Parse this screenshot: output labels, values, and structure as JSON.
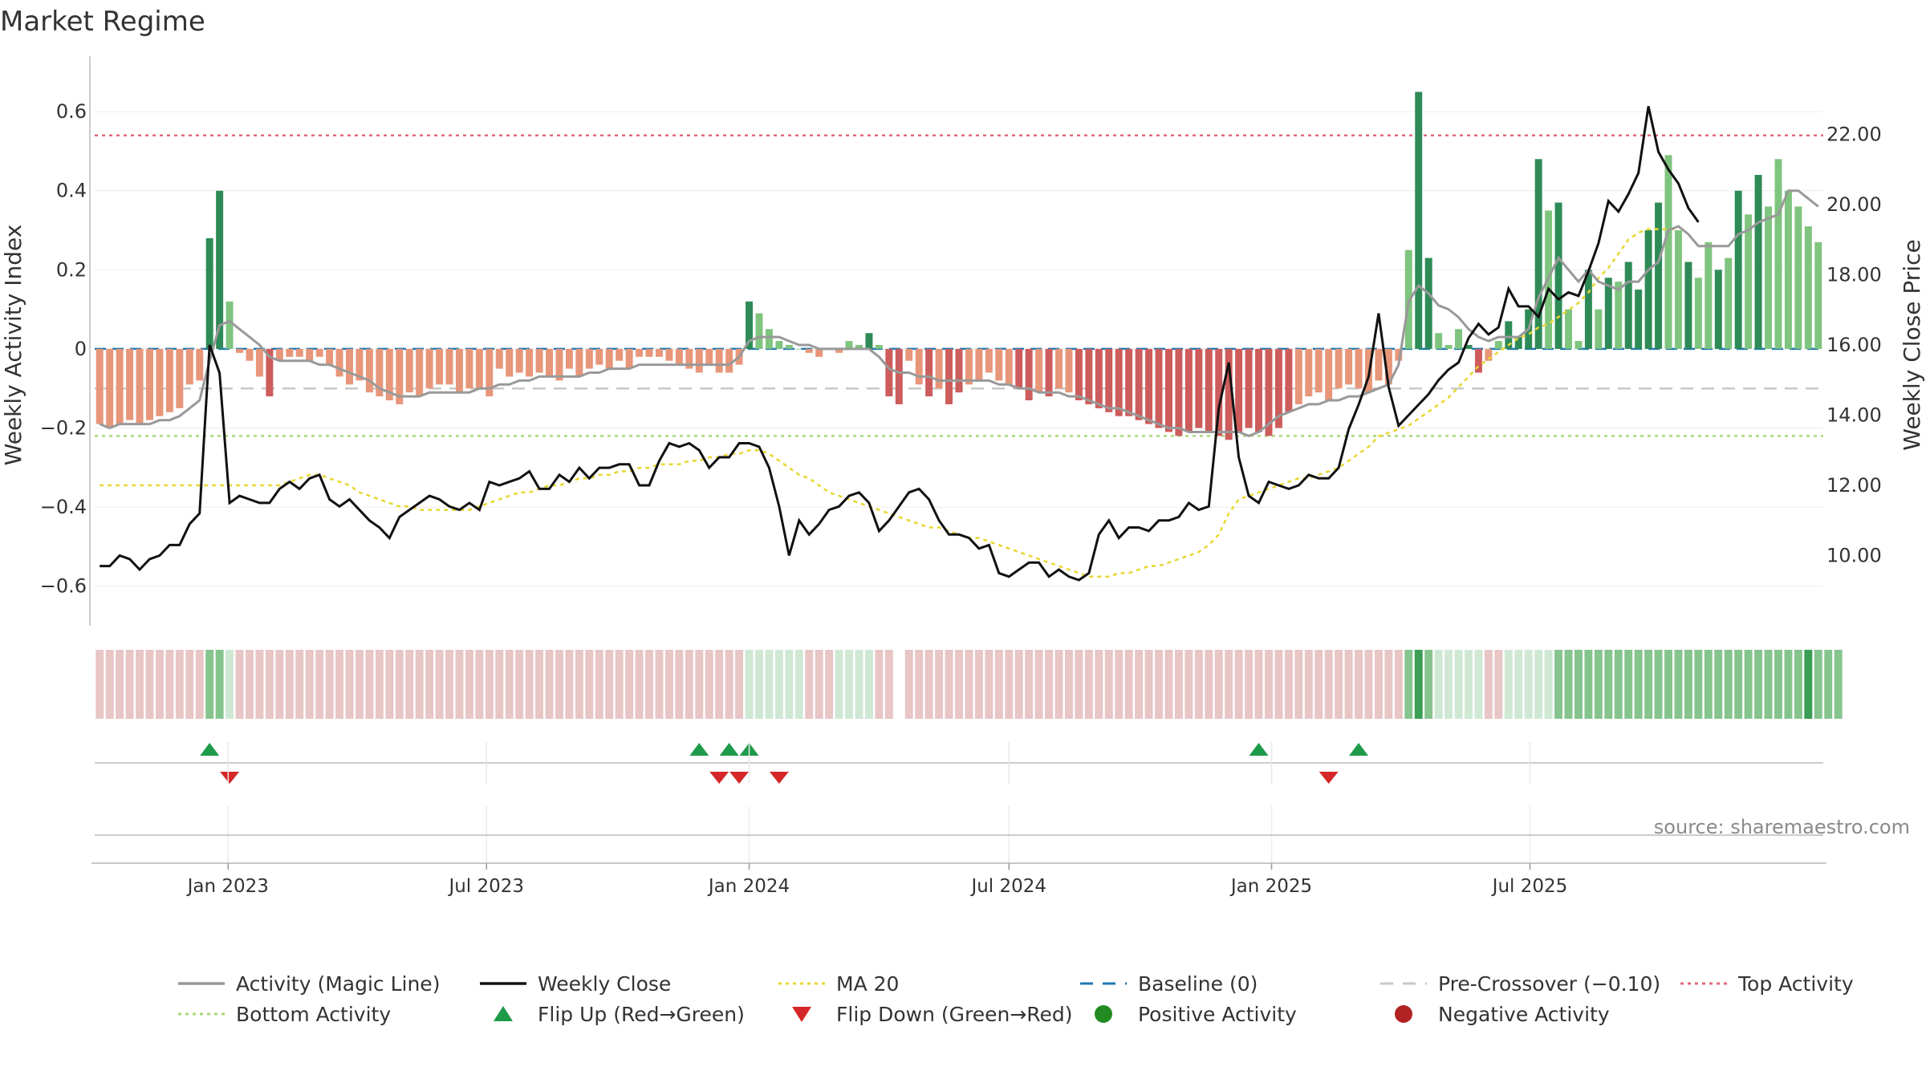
{
  "colors": {
    "strong_green": "#2e8b57",
    "light_green": "#7fc47f",
    "strong_red": "#cd5c5c",
    "light_red": "#e8967a",
    "magic_line": "#999999",
    "close_line": "#111111",
    "ma20": "#e8d730",
    "baseline": "#1f77b4",
    "pre_crossover": "#c8c8c8",
    "top_activity": "#e06a7a",
    "bottom_activity": "#a8d878",
    "flip_up": "#1e9a4a",
    "flip_down": "#d62728",
    "positive": "#228b22",
    "negative": "#b22222"
  },
  "chart_data": {
    "type": "bar",
    "title": "Market Regime",
    "source": "source: sharemaestro.com",
    "left_axis": {
      "label": "Weekly Activity Index",
      "ylim": [
        -0.7,
        0.72
      ],
      "ticks": [
        -0.6,
        -0.4,
        -0.2,
        0,
        0.2,
        0.4,
        0.6
      ],
      "tick_labels": [
        "−0.6",
        "−0.4",
        "−0.2",
        "0",
        "0.2",
        "0.4",
        "0.6"
      ]
    },
    "right_axis": {
      "label": "Weekly Close Price",
      "ylim": [
        8.0,
        24.0
      ],
      "ticks": [
        10,
        12,
        14,
        16,
        18,
        20,
        22
      ],
      "tick_labels": [
        "10.00",
        "12.00",
        "14.00",
        "16.00",
        "18.00",
        "20.00",
        "22.00"
      ]
    },
    "x_axis": {
      "start": "2022-10-03",
      "end": "2025-10-27",
      "ticks": [
        {
          "label": "Jan 2023",
          "date": "2023-01-01"
        },
        {
          "label": "Jul 2023",
          "date": "2023-07-01"
        },
        {
          "label": "Jan 2024",
          "date": "2024-01-01"
        },
        {
          "label": "Jul 2024",
          "date": "2024-07-01"
        },
        {
          "label": "Jan 2025",
          "date": "2025-01-01"
        },
        {
          "label": "Jul 2025",
          "date": "2025-07-01"
        }
      ]
    },
    "reference_lines": {
      "baseline": 0,
      "pre_crossover": -0.1,
      "top_activity": 0.54,
      "bottom_activity": -0.22
    },
    "activity_index": [
      -0.19,
      -0.2,
      -0.19,
      -0.18,
      -0.19,
      -0.18,
      -0.17,
      -0.16,
      -0.15,
      -0.09,
      -0.08,
      0.28,
      0.4,
      0.12,
      -0.01,
      -0.03,
      -0.07,
      -0.12,
      -0.03,
      -0.02,
      -0.02,
      -0.03,
      -0.02,
      -0.04,
      -0.07,
      -0.09,
      -0.08,
      -0.11,
      -0.12,
      -0.13,
      -0.14,
      -0.11,
      -0.12,
      -0.1,
      -0.09,
      -0.09,
      -0.11,
      -0.1,
      -0.1,
      -0.12,
      -0.05,
      -0.07,
      -0.06,
      -0.07,
      -0.06,
      -0.07,
      -0.08,
      -0.05,
      -0.07,
      -0.05,
      -0.04,
      -0.05,
      -0.03,
      -0.05,
      -0.02,
      -0.02,
      -0.02,
      -0.03,
      -0.04,
      -0.05,
      -0.06,
      -0.04,
      -0.06,
      -0.06,
      -0.04,
      0.12,
      0.09,
      0.05,
      0.02,
      0.01,
      0.0,
      -0.01,
      -0.02,
      0.0,
      -0.01,
      0.02,
      0.01,
      0.04,
      0.01,
      -0.12,
      -0.14,
      -0.03,
      -0.09,
      -0.12,
      -0.1,
      -0.14,
      -0.11,
      -0.09,
      -0.08,
      -0.06,
      -0.08,
      -0.09,
      -0.1,
      -0.13,
      -0.11,
      -0.12,
      -0.1,
      -0.11,
      -0.13,
      -0.14,
      -0.15,
      -0.16,
      -0.17,
      -0.17,
      -0.18,
      -0.19,
      -0.2,
      -0.21,
      -0.22,
      -0.21,
      -0.2,
      -0.21,
      -0.22,
      -0.23,
      -0.21,
      -0.2,
      -0.21,
      -0.22,
      -0.2,
      -0.16,
      -0.14,
      -0.12,
      -0.11,
      -0.13,
      -0.1,
      -0.09,
      -0.1,
      -0.11,
      -0.08,
      -0.09,
      -0.03,
      0.25,
      0.65,
      0.23,
      0.04,
      0.01,
      0.05,
      0.01,
      -0.06,
      -0.03,
      0.02,
      0.07,
      0.03,
      0.1,
      0.48,
      0.35,
      0.37,
      0.1,
      0.02,
      0.2,
      0.1,
      0.18,
      0.17,
      0.22,
      0.15,
      0.3,
      0.37,
      0.49,
      0.3,
      0.22,
      0.18,
      0.27,
      0.2,
      0.23,
      0.4,
      0.34,
      0.44,
      0.36,
      0.48,
      0.4,
      0.36,
      0.31,
      0.27
    ],
    "activity_strong": [
      0,
      0,
      0,
      0,
      0,
      0,
      0,
      0,
      0,
      0,
      0,
      1,
      1,
      0,
      0,
      0,
      0,
      1,
      0,
      0,
      0,
      0,
      0,
      0,
      0,
      0,
      0,
      0,
      0,
      0,
      0,
      0,
      0,
      0,
      0,
      0,
      0,
      0,
      0,
      0,
      0,
      0,
      0,
      0,
      0,
      0,
      0,
      0,
      0,
      0,
      0,
      0,
      0,
      0,
      0,
      0,
      0,
      0,
      0,
      0,
      0,
      0,
      0,
      0,
      0,
      1,
      0,
      0,
      0,
      0,
      0,
      0,
      0,
      0,
      0,
      0,
      0,
      1,
      0,
      1,
      1,
      0,
      0,
      1,
      0,
      1,
      1,
      0,
      0,
      0,
      0,
      0,
      1,
      1,
      0,
      1,
      0,
      0,
      1,
      1,
      1,
      1,
      1,
      1,
      1,
      1,
      1,
      1,
      1,
      1,
      1,
      1,
      1,
      1,
      1,
      1,
      1,
      1,
      1,
      1,
      0,
      0,
      0,
      0,
      0,
      0,
      0,
      0,
      0,
      0,
      0,
      0,
      1,
      1,
      0,
      0,
      0,
      1,
      1,
      0,
      0,
      1,
      1,
      1,
      1,
      0,
      1,
      0,
      0,
      1,
      0,
      1,
      0,
      1,
      1,
      1,
      1,
      0,
      0,
      1,
      0,
      0,
      1,
      0,
      1,
      0,
      1,
      0,
      0,
      0,
      0
    ],
    "magic_line": [
      -0.19,
      -0.2,
      -0.19,
      -0.19,
      -0.19,
      -0.19,
      -0.18,
      -0.18,
      -0.17,
      -0.15,
      -0.13,
      -0.03,
      0.06,
      0.07,
      0.05,
      0.03,
      0.01,
      -0.02,
      -0.03,
      -0.03,
      -0.03,
      -0.03,
      -0.04,
      -0.04,
      -0.05,
      -0.06,
      -0.07,
      -0.08,
      -0.1,
      -0.11,
      -0.12,
      -0.12,
      -0.12,
      -0.11,
      -0.11,
      -0.11,
      -0.11,
      -0.11,
      -0.1,
      -0.1,
      -0.09,
      -0.09,
      -0.08,
      -0.08,
      -0.07,
      -0.07,
      -0.07,
      -0.07,
      -0.07,
      -0.06,
      -0.06,
      -0.05,
      -0.05,
      -0.05,
      -0.04,
      -0.04,
      -0.04,
      -0.04,
      -0.04,
      -0.04,
      -0.04,
      -0.04,
      -0.04,
      -0.04,
      -0.02,
      0.02,
      0.03,
      0.03,
      0.03,
      0.02,
      0.01,
      0.01,
      0.0,
      0.0,
      0.0,
      0.0,
      0.0,
      0.0,
      -0.02,
      -0.05,
      -0.06,
      -0.06,
      -0.07,
      -0.07,
      -0.08,
      -0.08,
      -0.08,
      -0.08,
      -0.08,
      -0.08,
      -0.09,
      -0.09,
      -0.1,
      -0.1,
      -0.11,
      -0.11,
      -0.11,
      -0.12,
      -0.12,
      -0.13,
      -0.14,
      -0.15,
      -0.15,
      -0.16,
      -0.17,
      -0.18,
      -0.19,
      -0.2,
      -0.2,
      -0.21,
      -0.21,
      -0.21,
      -0.21,
      -0.21,
      -0.21,
      -0.22,
      -0.21,
      -0.19,
      -0.17,
      -0.16,
      -0.15,
      -0.14,
      -0.14,
      -0.13,
      -0.13,
      -0.12,
      -0.12,
      -0.11,
      -0.1,
      -0.09,
      -0.04,
      0.12,
      0.16,
      0.14,
      0.11,
      0.1,
      0.08,
      0.05,
      0.03,
      0.02,
      0.03,
      0.03,
      0.03,
      0.05,
      0.13,
      0.18,
      0.23,
      0.2,
      0.17,
      0.2,
      0.17,
      0.16,
      0.15,
      0.17,
      0.17,
      0.2,
      0.22,
      0.3,
      0.31,
      0.29,
      0.26,
      0.26,
      0.26,
      0.26,
      0.29,
      0.3,
      0.32,
      0.33,
      0.34,
      0.4,
      0.4,
      0.38,
      0.36
    ],
    "weekly_close": [
      9.7,
      9.7,
      10.0,
      9.9,
      9.6,
      9.9,
      10.0,
      10.3,
      10.3,
      10.9,
      11.2,
      16.0,
      15.2,
      11.5,
      11.7,
      11.6,
      11.5,
      11.5,
      11.9,
      12.1,
      11.9,
      12.2,
      12.3,
      11.6,
      11.4,
      11.6,
      11.3,
      11.0,
      10.8,
      10.5,
      11.1,
      11.3,
      11.5,
      11.7,
      11.6,
      11.4,
      11.3,
      11.5,
      11.3,
      12.1,
      12.0,
      12.1,
      12.2,
      12.4,
      11.9,
      11.9,
      12.3,
      12.1,
      12.5,
      12.2,
      12.5,
      12.5,
      12.6,
      12.6,
      12.0,
      12.0,
      12.7,
      13.2,
      13.1,
      13.2,
      13.0,
      12.5,
      12.8,
      12.8,
      13.2,
      13.2,
      13.1,
      12.5,
      11.4,
      10.0,
      11.0,
      10.6,
      10.9,
      11.3,
      11.4,
      11.7,
      11.8,
      11.5,
      10.7,
      11.0,
      11.4,
      11.8,
      11.9,
      11.6,
      11.0,
      10.6,
      10.6,
      10.5,
      10.2,
      10.3,
      9.5,
      9.4,
      9.6,
      9.8,
      9.8,
      9.4,
      9.6,
      9.4,
      9.3,
      9.5,
      10.6,
      11.0,
      10.5,
      10.8,
      10.8,
      10.7,
      11.0,
      11.0,
      11.1,
      11.5,
      11.3,
      11.4,
      14.2,
      15.5,
      12.8,
      11.7,
      11.5,
      12.1,
      12.0,
      11.9,
      12.0,
      12.3,
      12.2,
      12.2,
      12.5,
      13.6,
      14.3,
      15.1,
      16.9,
      14.8,
      13.7,
      14.0,
      14.3,
      14.6,
      15.0,
      15.3,
      15.5,
      16.2,
      16.6,
      16.3,
      16.5,
      17.6,
      17.1,
      17.1,
      16.8,
      17.6,
      17.3,
      17.5,
      17.4,
      18.1,
      18.9,
      20.1,
      19.8,
      20.3,
      20.9,
      22.8,
      21.5,
      21.0,
      20.6,
      19.9,
      19.5
    ],
    "ma20": [
      12.0,
      12.0,
      12.0,
      12.0,
      12.0,
      12.0,
      12.0,
      12.0,
      12.0,
      12.0,
      12.0,
      12.0,
      12.0,
      12.0,
      12.0,
      12.0,
      12.0,
      12.0,
      12.0,
      12.1,
      12.2,
      12.3,
      12.3,
      12.2,
      12.1,
      12.0,
      11.8,
      11.7,
      11.6,
      11.5,
      11.4,
      11.4,
      11.3,
      11.3,
      11.3,
      11.3,
      11.3,
      11.3,
      11.4,
      11.5,
      11.6,
      11.7,
      11.8,
      11.8,
      11.9,
      12.0,
      12.0,
      12.1,
      12.2,
      12.2,
      12.3,
      12.3,
      12.4,
      12.4,
      12.5,
      12.5,
      12.6,
      12.6,
      12.6,
      12.7,
      12.7,
      12.8,
      12.8,
      12.9,
      12.9,
      13.0,
      13.0,
      12.9,
      12.7,
      12.5,
      12.3,
      12.2,
      12.0,
      11.8,
      11.7,
      11.6,
      11.5,
      11.4,
      11.3,
      11.2,
      11.1,
      11.0,
      10.9,
      10.8,
      10.8,
      10.7,
      10.6,
      10.5,
      10.5,
      10.4,
      10.3,
      10.2,
      10.1,
      10.0,
      9.9,
      9.8,
      9.7,
      9.6,
      9.5,
      9.4,
      9.4,
      9.4,
      9.5,
      9.5,
      9.6,
      9.7,
      9.7,
      9.8,
      9.9,
      10.0,
      10.1,
      10.3,
      10.6,
      11.2,
      11.6,
      11.7,
      11.8,
      11.9,
      12.0,
      12.1,
      12.2,
      12.2,
      12.3,
      12.4,
      12.5,
      12.7,
      12.9,
      13.1,
      13.4,
      13.5,
      13.6,
      13.7,
      13.9,
      14.1,
      14.3,
      14.5,
      14.8,
      15.1,
      15.4,
      15.6,
      15.8,
      16.0,
      16.2,
      16.3,
      16.5,
      16.6,
      16.8,
      17.0,
      17.2,
      17.5,
      17.9,
      18.2,
      18.6,
      19.0,
      19.2,
      19.3,
      19.3,
      19.3,
      19.3
    ],
    "regime_strip": [
      1,
      1,
      1,
      1,
      1,
      1,
      1,
      1,
      1,
      1,
      1,
      3,
      3,
      2,
      1,
      1,
      1,
      1,
      1,
      1,
      1,
      1,
      1,
      1,
      1,
      1,
      1,
      1,
      1,
      1,
      1,
      1,
      1,
      1,
      1,
      1,
      1,
      1,
      1,
      1,
      1,
      1,
      1,
      1,
      1,
      1,
      1,
      1,
      1,
      1,
      1,
      1,
      1,
      1,
      1,
      1,
      1,
      1,
      1,
      1,
      1,
      1,
      1,
      1,
      1,
      2,
      2,
      2,
      2,
      2,
      2,
      1,
      1,
      1,
      2,
      2,
      2,
      2,
      1,
      1,
      0,
      1,
      1,
      1,
      1,
      1,
      1,
      1,
      1,
      1,
      1,
      1,
      1,
      1,
      1,
      1,
      1,
      1,
      1,
      1,
      1,
      1,
      1,
      1,
      1,
      1,
      1,
      1,
      1,
      1,
      1,
      1,
      1,
      1,
      1,
      1,
      1,
      1,
      1,
      1,
      1,
      1,
      1,
      1,
      1,
      1,
      1,
      1,
      1,
      1,
      1,
      3,
      4,
      3,
      2,
      2,
      2,
      2,
      2,
      1,
      1,
      2,
      2,
      2,
      2,
      2,
      3,
      3,
      3,
      3,
      3,
      3,
      3,
      3,
      3,
      3,
      3,
      3,
      3,
      3,
      3,
      3,
      3,
      3,
      3,
      3,
      3,
      3,
      3,
      3,
      3,
      4,
      3,
      3,
      3
    ],
    "flip_up_dates": [
      "2022-12-19",
      "2023-11-27",
      "2023-12-18",
      "2024-01-01",
      "2024-12-23",
      "2025-03-03"
    ],
    "flip_down_dates": [
      "2023-01-02",
      "2023-12-11",
      "2023-12-25",
      "2024-01-22",
      "2025-02-10"
    ],
    "legend": [
      {
        "label": "Activity (Magic Line)",
        "style": "line",
        "color": "#999999"
      },
      {
        "label": "Weekly Close",
        "style": "line",
        "color": "#111111"
      },
      {
        "label": "MA 20",
        "style": "dotted",
        "color": "#e8d730"
      },
      {
        "label": "Baseline (0)",
        "style": "dashed",
        "color": "#1f77b4"
      },
      {
        "label": "Pre-Crossover (−0.10)",
        "style": "dashed",
        "color": "#c8c8c8"
      },
      {
        "label": "Top Activity",
        "style": "dotted",
        "color": "#e06a7a"
      },
      {
        "label": "Bottom Activity",
        "style": "dotted",
        "color": "#a8d878"
      },
      {
        "label": "Flip Up (Red→Green)",
        "style": "triangle-up",
        "color": "#1e9a4a"
      },
      {
        "label": "Flip Down (Green→Red)",
        "style": "triangle-down",
        "color": "#d62728"
      },
      {
        "label": "Positive Activity",
        "style": "circle",
        "color": "#228b22"
      },
      {
        "label": "Negative Activity",
        "style": "circle",
        "color": "#b22222"
      }
    ]
  }
}
